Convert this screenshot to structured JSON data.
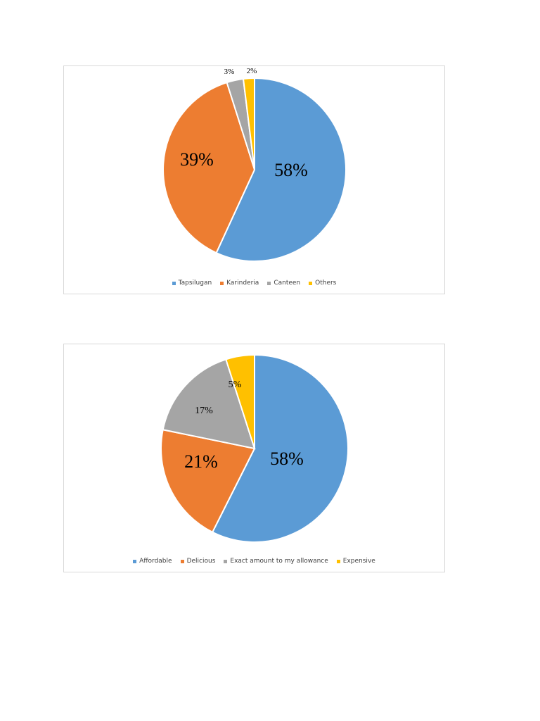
{
  "chart_data": [
    {
      "type": "pie",
      "title": "",
      "slices": [
        {
          "label": "Tapsilugan",
          "value": 58,
          "display": "58%",
          "color": "#5B9BD5"
        },
        {
          "label": "Karinderia",
          "value": 39,
          "display": "39%",
          "color": "#ED7D31"
        },
        {
          "label": "Canteen",
          "value": 3,
          "display": "3%",
          "color": "#A5A5A5"
        },
        {
          "label": "Others",
          "value": 2,
          "display": "2%",
          "color": "#FFC000"
        }
      ],
      "legend_position": "bottom"
    },
    {
      "type": "pie",
      "title": "",
      "slices": [
        {
          "label": "Affordable",
          "value": 58,
          "display": "58%",
          "color": "#5B9BD5"
        },
        {
          "label": "Delicious",
          "value": 21,
          "display": "21%",
          "color": "#ED7D31"
        },
        {
          "label": "Exact amount to my allowance",
          "value": 17,
          "display": "17%",
          "color": "#A5A5A5"
        },
        {
          "label": "Expensive",
          "value": 5,
          "display": "5%",
          "color": "#FFC000"
        }
      ],
      "legend_position": "bottom"
    }
  ]
}
